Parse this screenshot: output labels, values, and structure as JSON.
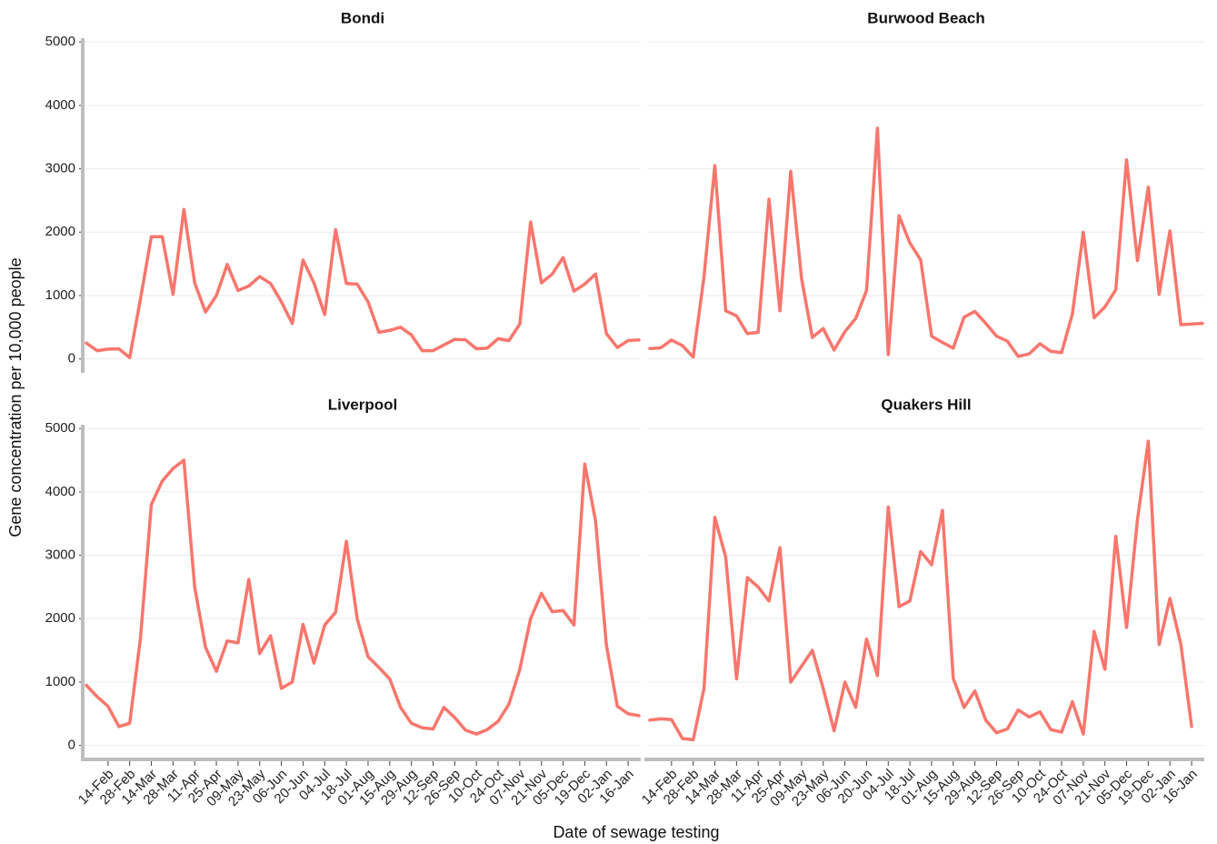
{
  "x_label": "Date of sewage testing",
  "y_label": "Gene concentration per 10,000 people",
  "chart_data": [
    {
      "type": "line",
      "title": "Bondi",
      "color": "#f8766d",
      "ylim": [
        -220,
        5060
      ],
      "yticks": [
        0,
        1000,
        2000,
        3000,
        4000,
        5000
      ],
      "grid": true,
      "y_tick_labels": true,
      "values": [
        250,
        130,
        155,
        160,
        20,
        950,
        1930,
        1930,
        1020,
        2360,
        1200,
        740,
        1000,
        1490,
        1080,
        1150,
        1300,
        1190,
        900,
        560,
        1560,
        1200,
        700,
        2040,
        1190,
        1180,
        900,
        420,
        450,
        500,
        380,
        130,
        130,
        220,
        310,
        300,
        160,
        170,
        320,
        290,
        550,
        2160,
        1200,
        1340,
        1600,
        1070,
        1180,
        1340,
        400,
        180,
        290,
        300
      ]
    },
    {
      "type": "line",
      "title": "Burwood Beach",
      "color": "#f8766d",
      "ylim": [
        -220,
        5060
      ],
      "yticks": [
        0,
        1000,
        2000,
        3000,
        4000,
        5000
      ],
      "grid": true,
      "y_tick_labels": false,
      "values": [
        165,
        175,
        300,
        210,
        30,
        1300,
        3050,
        760,
        680,
        400,
        420,
        2520,
        760,
        2960,
        1270,
        340,
        480,
        140,
        430,
        640,
        1080,
        3640,
        70,
        2260,
        1830,
        1560,
        360,
        260,
        170,
        660,
        750,
        560,
        360,
        280,
        40,
        80,
        240,
        120,
        100,
        710,
        2000,
        650,
        820,
        1090,
        3140,
        1550,
        2710,
        1020,
        2020,
        540,
        550,
        560
      ]
    },
    {
      "type": "line",
      "title": "Liverpool",
      "color": "#f8766d",
      "ylim": [
        -220,
        5060
      ],
      "yticks": [
        0,
        1000,
        2000,
        3000,
        4000,
        5000
      ],
      "grid": true,
      "y_tick_labels": true,
      "categories": [
        null,
        null,
        "14-Feb",
        null,
        "28-Feb",
        null,
        "14-Mar",
        null,
        "28-Mar",
        null,
        "11-Apr",
        null,
        "25-Apr",
        null,
        "09-May",
        null,
        "23-May",
        null,
        "06-Jun",
        null,
        "20-Jun",
        null,
        "04-Jul",
        null,
        "18-Jul",
        null,
        "01-Aug",
        null,
        "15-Aug",
        null,
        "29-Aug",
        null,
        "12-Sep",
        null,
        "26-Sep",
        null,
        "10-Oct",
        null,
        "24-Oct",
        null,
        "07-Nov",
        null,
        "21-Nov",
        null,
        "05-Dec",
        null,
        "19-Dec",
        null,
        "02-Jan",
        null,
        "16-Jan",
        null
      ],
      "values": [
        950,
        770,
        620,
        300,
        350,
        1700,
        3800,
        4170,
        4370,
        4500,
        2500,
        1550,
        1170,
        1650,
        1620,
        2620,
        1450,
        1730,
        900,
        1000,
        1910,
        1300,
        1900,
        2100,
        3220,
        2000,
        1400,
        1230,
        1050,
        600,
        350,
        280,
        260,
        600,
        440,
        240,
        180,
        250,
        380,
        650,
        1200,
        2000,
        2400,
        2110,
        2130,
        1900,
        4440,
        3540,
        1580,
        620,
        500,
        470
      ]
    },
    {
      "type": "line",
      "title": "Quakers Hill",
      "color": "#f8766d",
      "ylim": [
        -220,
        5060
      ],
      "yticks": [
        0,
        1000,
        2000,
        3000,
        4000,
        5000
      ],
      "grid": true,
      "y_tick_labels": false,
      "categories": [
        null,
        null,
        "14-Feb",
        null,
        "28-Feb",
        null,
        "14-Mar",
        null,
        "28-Mar",
        null,
        "11-Apr",
        null,
        "25-Apr",
        null,
        "09-May",
        null,
        "23-May",
        null,
        "06-Jun",
        null,
        "20-Jun",
        null,
        "04-Jul",
        null,
        "18-Jul",
        null,
        "01-Aug",
        null,
        "15-Aug",
        null,
        "29-Aug",
        null,
        "12-Sep",
        null,
        "26-Sep",
        null,
        "10-Oct",
        null,
        "24-Oct",
        null,
        "07-Nov",
        null,
        "21-Nov",
        null,
        "05-Dec",
        null,
        "19-Dec",
        null,
        "02-Jan",
        null,
        "16-Jan",
        null
      ],
      "values": [
        400,
        420,
        410,
        110,
        90,
        900,
        3600,
        2970,
        1050,
        2650,
        2500,
        2280,
        3120,
        1000,
        1250,
        1500,
        900,
        230,
        1000,
        600,
        1680,
        1100,
        3760,
        2190,
        2280,
        3060,
        2850,
        3710,
        1060,
        600,
        860,
        400,
        200,
        260,
        560,
        450,
        530,
        250,
        210,
        690,
        180,
        1800,
        1200,
        3300,
        1860,
        3560,
        4800,
        1590,
        2320,
        1600,
        300,
        null
      ]
    }
  ]
}
